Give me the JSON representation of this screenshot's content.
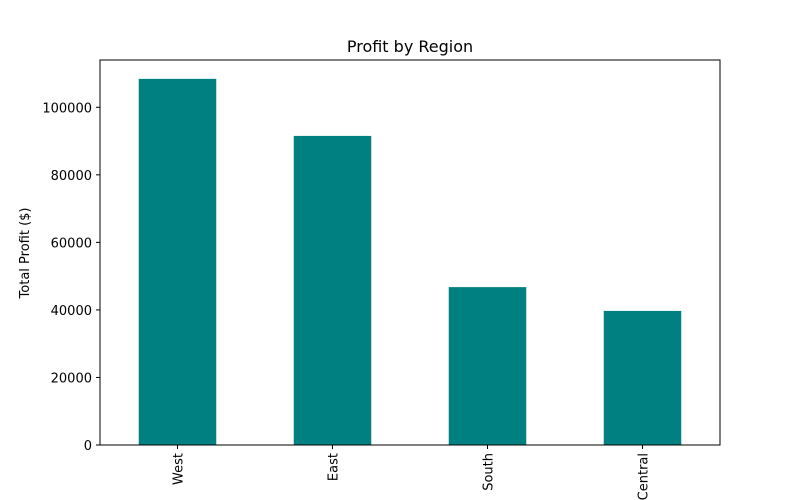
{
  "chart_data": {
    "type": "bar",
    "title": "Profit by Region",
    "xlabel": "",
    "ylabel": "Total Profit ($)",
    "categories": [
      "West",
      "East",
      "South",
      "Central"
    ],
    "values": [
      108419,
      91523,
      46749,
      39706
    ],
    "ylim": [
      0,
      114000
    ],
    "yticks": [
      0,
      20000,
      40000,
      60000,
      80000,
      100000
    ],
    "ytick_labels": [
      "0",
      "20000",
      "40000",
      "60000",
      "80000",
      "100000"
    ],
    "bar_color": "#008080",
    "grid": false,
    "legend": "none"
  }
}
